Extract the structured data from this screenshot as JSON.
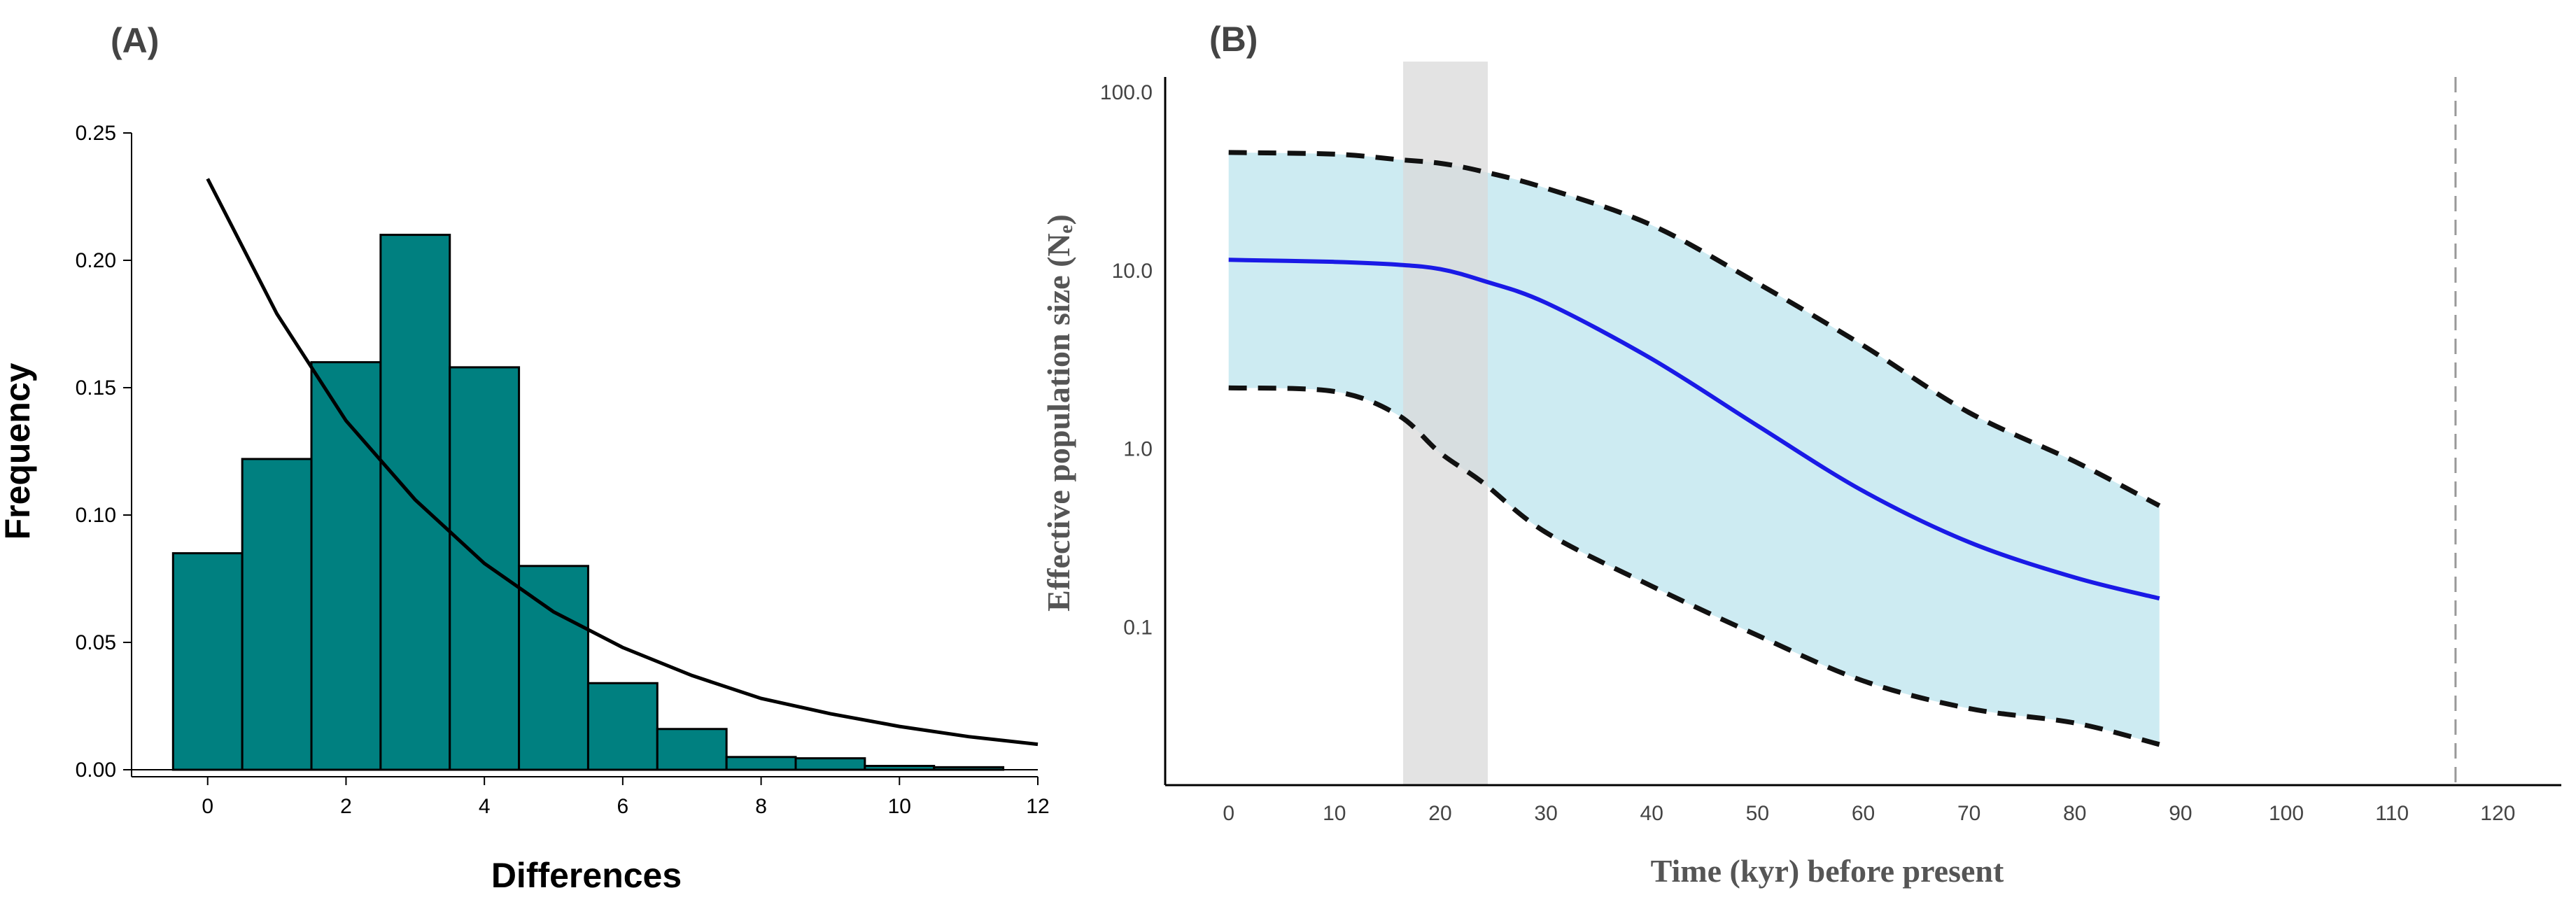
{
  "panels": {
    "a_label": "(A)",
    "b_label": "(B)"
  },
  "colors": {
    "bar_fill": "#008080",
    "bar_stroke": "#000000",
    "hpd_fill": "#cdebf2",
    "median_line": "#1a1ae6",
    "glacial_band": "#d9d9d9"
  },
  "chart_data": [
    {
      "type": "bar",
      "panel": "A",
      "xlabel": "Differences",
      "ylabel": "Frequency",
      "xlim": [
        -1.1,
        12
      ],
      "ylim": [
        0,
        0.25
      ],
      "xticks": [
        0,
        2,
        4,
        6,
        8,
        10,
        12
      ],
      "xtick_labels": [
        "0",
        "2",
        "4",
        "6",
        "8",
        "10",
        "12"
      ],
      "yticks": [
        0,
        0.05,
        0.1,
        0.15,
        0.2,
        0.25
      ],
      "ytick_labels": [
        "0.00",
        "0.05",
        "0.10",
        "0.15",
        "0.20",
        "0.25"
      ],
      "categories": [
        "0",
        "1",
        "2",
        "3",
        "4",
        "5",
        "6",
        "7",
        "8",
        "9",
        "10",
        "11"
      ],
      "values": [
        0.085,
        0.122,
        0.16,
        0.21,
        0.158,
        0.08,
        0.034,
        0.016,
        0.005,
        0.0045,
        0.0015,
        0.001
      ],
      "expected_curve": {
        "x": [
          0,
          1,
          2,
          3,
          4,
          5,
          6,
          7,
          8,
          9,
          10,
          11,
          12
        ],
        "y": [
          0.232,
          0.179,
          0.137,
          0.106,
          0.081,
          0.062,
          0.048,
          0.037,
          0.028,
          0.022,
          0.017,
          0.013,
          0.01
        ]
      }
    },
    {
      "type": "area",
      "panel": "B",
      "xlabel": "Time (kyr) before present",
      "ylabel": "Effective population size (Nₑ)",
      "yscale": "log",
      "xlim": [
        -6,
        126
      ],
      "ylim": [
        0.013,
        160
      ],
      "xticks": [
        0,
        10,
        20,
        30,
        40,
        50,
        60,
        70,
        80,
        90,
        100,
        110,
        120
      ],
      "xtick_labels": [
        "0",
        "10",
        "20",
        "30",
        "40",
        "50",
        "60",
        "70",
        "80",
        "90",
        "100",
        "110",
        "120"
      ],
      "yticks": [
        0.1,
        1,
        10,
        100
      ],
      "ytick_labels": [
        "0.1",
        "1.0",
        "10.0",
        "100.0"
      ],
      "x": [
        0,
        10,
        16,
        20,
        24,
        30,
        40,
        50,
        60,
        70,
        80,
        88
      ],
      "median": [
        11.5,
        11.2,
        10.8,
        10.2,
        8.8,
        6.6,
        3.2,
        1.35,
        0.58,
        0.3,
        0.19,
        0.145
      ],
      "upper": [
        46,
        45,
        42,
        40,
        36,
        29,
        18,
        8.5,
        3.8,
        1.6,
        0.85,
        0.48
      ],
      "lower": [
        2.2,
        2.1,
        1.55,
        0.95,
        0.65,
        0.34,
        0.17,
        0.09,
        0.05,
        0.035,
        0.029,
        0.022
      ],
      "shaded_band_x": [
        16.5,
        24.5
      ],
      "vertical_line_x": 116
    }
  ]
}
